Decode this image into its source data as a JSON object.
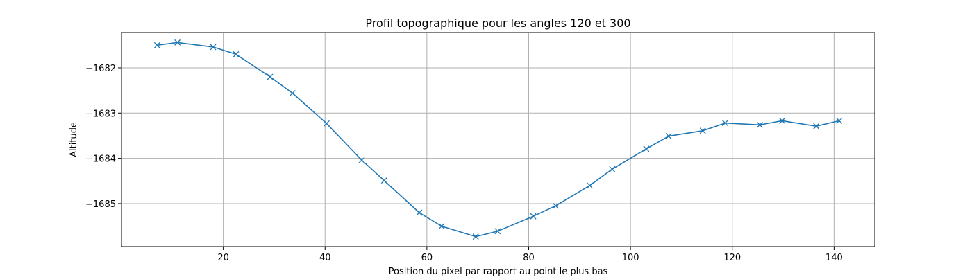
{
  "chart_data": {
    "type": "line",
    "title": "Profil topographique pour les angles 120 et 300",
    "xlabel": "Position du pixel par rapport au point le plus bas",
    "ylabel": "Altitude",
    "xlim": [
      0,
      148
    ],
    "ylim": [
      -1685.95,
      -1681.22
    ],
    "xticks": [
      20,
      40,
      60,
      80,
      100,
      120,
      140
    ],
    "xtick_labels": [
      "20",
      "40",
      "60",
      "80",
      "100",
      "120",
      "140"
    ],
    "yticks": [
      -1682,
      -1683,
      -1684,
      -1685
    ],
    "ytick_labels": [
      "−1682",
      "−1683",
      "−1684",
      "−1685"
    ],
    "grid": true,
    "marker": "x",
    "line_color": "#1f77b4",
    "series": [
      {
        "x": [
          7,
          11,
          18,
          22.5,
          29.2,
          33.6,
          40.3,
          47.2,
          51.6,
          58.5,
          62.9,
          69.6,
          73.9,
          80.9,
          85.3,
          92,
          96.4,
          103.1,
          107.5,
          114.2,
          118.6,
          125.4,
          129.8,
          136.5,
          141
        ],
        "y": [
          -1681.5,
          -1681.44,
          -1681.54,
          -1681.7,
          -1682.2,
          -1682.56,
          -1683.23,
          -1684.04,
          -1684.49,
          -1685.2,
          -1685.5,
          -1685.73,
          -1685.61,
          -1685.28,
          -1685.05,
          -1684.6,
          -1684.24,
          -1683.79,
          -1683.51,
          -1683.39,
          -1683.22,
          -1683.26,
          -1683.17,
          -1683.29,
          -1683.17
        ]
      }
    ]
  }
}
